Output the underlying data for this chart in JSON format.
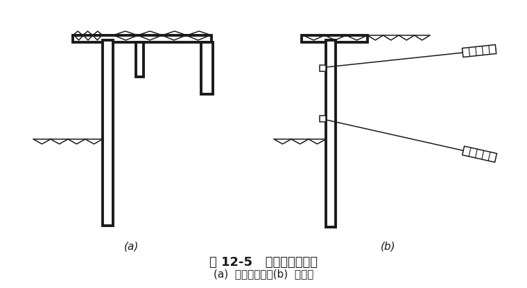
{
  "bg_color": "#ffffff",
  "line_color": "#1a1a1a",
  "title": "图 12-5   拉锚式支护结构",
  "subtitle": "(a)  地面拉锚式；(b)  锚杆式",
  "label_a": "(a)",
  "label_b": "(b)",
  "title_fontsize": 13,
  "subtitle_fontsize": 11,
  "label_fontsize": 11
}
